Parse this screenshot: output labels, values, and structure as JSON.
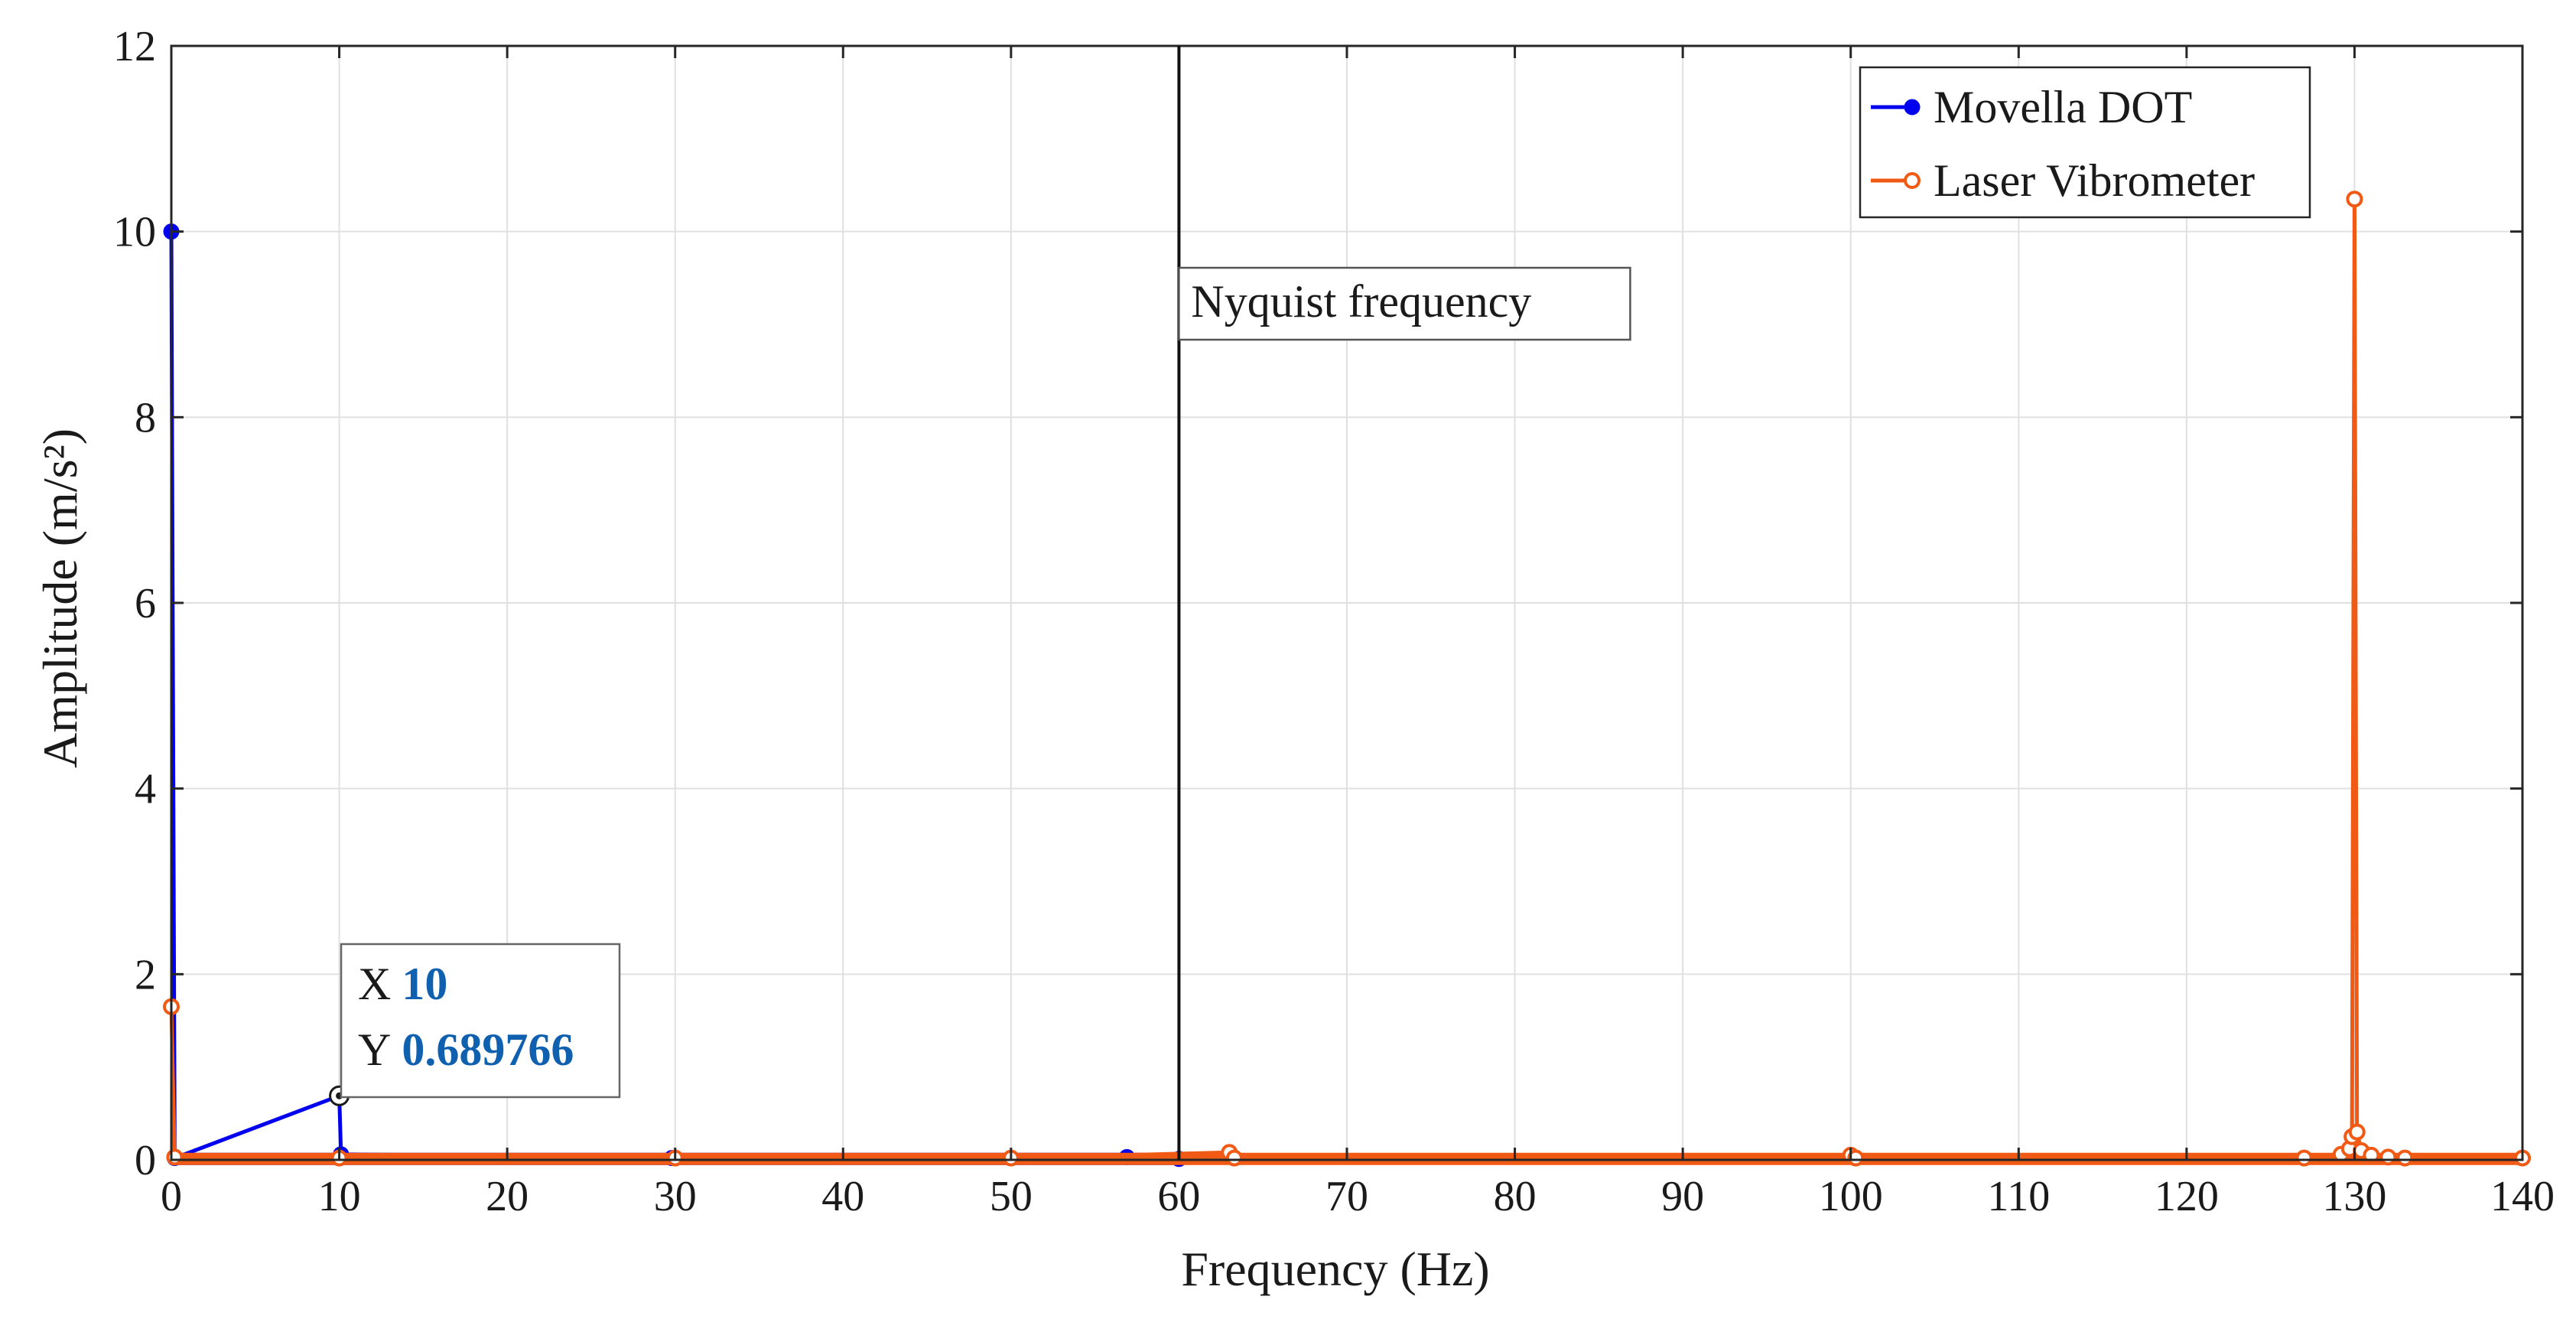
{
  "chart_data": {
    "type": "line",
    "xlabel": "Frequency (Hz)",
    "ylabel": "Amplitude (m/s²)",
    "xlim": [
      0,
      140
    ],
    "ylim": [
      0,
      12
    ],
    "xticks": [
      0,
      10,
      20,
      30,
      40,
      50,
      60,
      70,
      80,
      90,
      100,
      110,
      120,
      130,
      140
    ],
    "yticks": [
      0,
      2,
      4,
      6,
      8,
      10,
      12
    ],
    "grid": true,
    "legend_position": "top-right",
    "series": [
      {
        "name": "Movella DOT",
        "color": "#0000ee",
        "marker": "filled-circle",
        "points": [
          [
            0,
            10.0
          ],
          [
            0.2,
            0.02
          ],
          [
            10,
            0.689766
          ],
          [
            10.1,
            0.06
          ],
          [
            29.8,
            0.02
          ],
          [
            50,
            0.02
          ],
          [
            56.9,
            0.03
          ],
          [
            60,
            0.01
          ]
        ]
      },
      {
        "name": "Laser Vibrometer",
        "color": "#f05a14",
        "marker": "open-circle",
        "points": [
          [
            0,
            1.65
          ],
          [
            0.2,
            0.03
          ],
          [
            10,
            0.02
          ],
          [
            30,
            0.02
          ],
          [
            50,
            0.02
          ],
          [
            63,
            0.08
          ],
          [
            63.3,
            0.02
          ],
          [
            100,
            0.05
          ],
          [
            100.3,
            0.02
          ],
          [
            127,
            0.02
          ],
          [
            129.2,
            0.06
          ],
          [
            129.7,
            0.12
          ],
          [
            129.85,
            0.25
          ],
          [
            130,
            10.35
          ],
          [
            130.15,
            0.3
          ],
          [
            130.4,
            0.1
          ],
          [
            131,
            0.05
          ],
          [
            132,
            0.03
          ],
          [
            133,
            0.02
          ],
          [
            140,
            0.02
          ]
        ]
      }
    ],
    "annotations": {
      "vertical_line_x": 60,
      "vertical_line_label": "Nyquist frequency",
      "datatip": {
        "x_prefix": "X",
        "x_value": "10",
        "y_prefix": "Y",
        "y_value": "0.689766",
        "anchor_x": 10,
        "anchor_y": 0.689766
      }
    }
  },
  "colors": {
    "axis": "#262626",
    "grid": "#e0e0e0",
    "nyquist_line": "#111111"
  }
}
